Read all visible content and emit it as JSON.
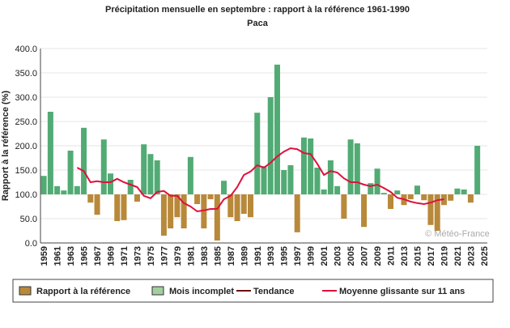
{
  "chart_data": {
    "type": "bar",
    "title": "Précipitation mensuelle en septembre : rapport à la référence 1961-1990",
    "subtitle": "Paca",
    "y_label": "Rapport à la référence (%)",
    "watermark": "© Météo-France",
    "baseline": 100,
    "categories": [
      "1959",
      null,
      "1961",
      null,
      "1963",
      null,
      "1965",
      null,
      "1967",
      null,
      "1969",
      null,
      "1971",
      null,
      "1973",
      null,
      "1975",
      null,
      "1977",
      null,
      "1979",
      null,
      "1981",
      null,
      "1983",
      null,
      "1985",
      null,
      "1987",
      null,
      "1989",
      null,
      "1991",
      null,
      "1993",
      null,
      "1995",
      null,
      "1997",
      null,
      "1999",
      null,
      "2001",
      null,
      "2003",
      null,
      "2005",
      null,
      "2007",
      null,
      "2009",
      null,
      "2011",
      null,
      "2013",
      null,
      "2015",
      null,
      "2017",
      null,
      "2019",
      null,
      "2021",
      null,
      "2023",
      null,
      "2025"
    ],
    "series": [
      {
        "name": "Rapport à la référence",
        "color": "#b8893a",
        "color_above": "#52ab74",
        "values": [
          138,
          270,
          117,
          108,
          190,
          117,
          237,
          83,
          58,
          213,
          143,
          45,
          47,
          130,
          85,
          203,
          183,
          170,
          15,
          30,
          53,
          30,
          177,
          80,
          30,
          90,
          5,
          128,
          53,
          45,
          60,
          53,
          268,
          158,
          300,
          367,
          150,
          160,
          22,
          217,
          215,
          155,
          110,
          170,
          117,
          50,
          213,
          205,
          33,
          123,
          153,
          103,
          70,
          108,
          78,
          90,
          118,
          88,
          37,
          25,
          78,
          87,
          112,
          110,
          83,
          200,
          null
        ]
      },
      {
        "name": "Moyenne glissante sur 11 ans",
        "color": "#e0103a",
        "values": [
          null,
          null,
          null,
          null,
          null,
          155,
          148,
          125,
          127,
          125,
          125,
          132,
          125,
          120,
          115,
          97,
          92,
          105,
          107,
          97,
          97,
          82,
          75,
          65,
          67,
          70,
          70,
          90,
          97,
          115,
          140,
          147,
          160,
          155,
          165,
          178,
          188,
          195,
          193,
          185,
          183,
          163,
          140,
          148,
          145,
          133,
          125,
          125,
          120,
          117,
          120,
          113,
          105,
          93,
          90,
          85,
          82,
          80,
          83,
          88,
          90,
          null,
          null,
          null,
          null,
          null,
          null
        ]
      }
    ],
    "legend": [
      {
        "name": "Rapport à la référence",
        "color": "#b8893a",
        "kind": "bar"
      },
      {
        "name": "Mois incomplet",
        "color": "#a3cfa0",
        "kind": "bar"
      },
      {
        "name": "Tendance",
        "color": "#6b0f0f",
        "kind": "line"
      },
      {
        "name": "Moyenne glissante sur 11 ans",
        "color": "#e0103a",
        "kind": "line"
      }
    ],
    "ylim": [
      0,
      400
    ],
    "yticks": [
      {
        "value": 0,
        "label": "0.0"
      },
      {
        "value": 50,
        "label": "50.0"
      },
      {
        "value": 100,
        "label": "100.0"
      },
      {
        "value": 150,
        "label": "150.0"
      },
      {
        "value": 200,
        "label": "200.0"
      },
      {
        "value": 250,
        "label": "250.0"
      },
      {
        "value": 300,
        "label": "300.0"
      },
      {
        "value": 350,
        "label": "350.0"
      },
      {
        "value": 400,
        "label": "400.0"
      }
    ],
    "grid": true
  }
}
